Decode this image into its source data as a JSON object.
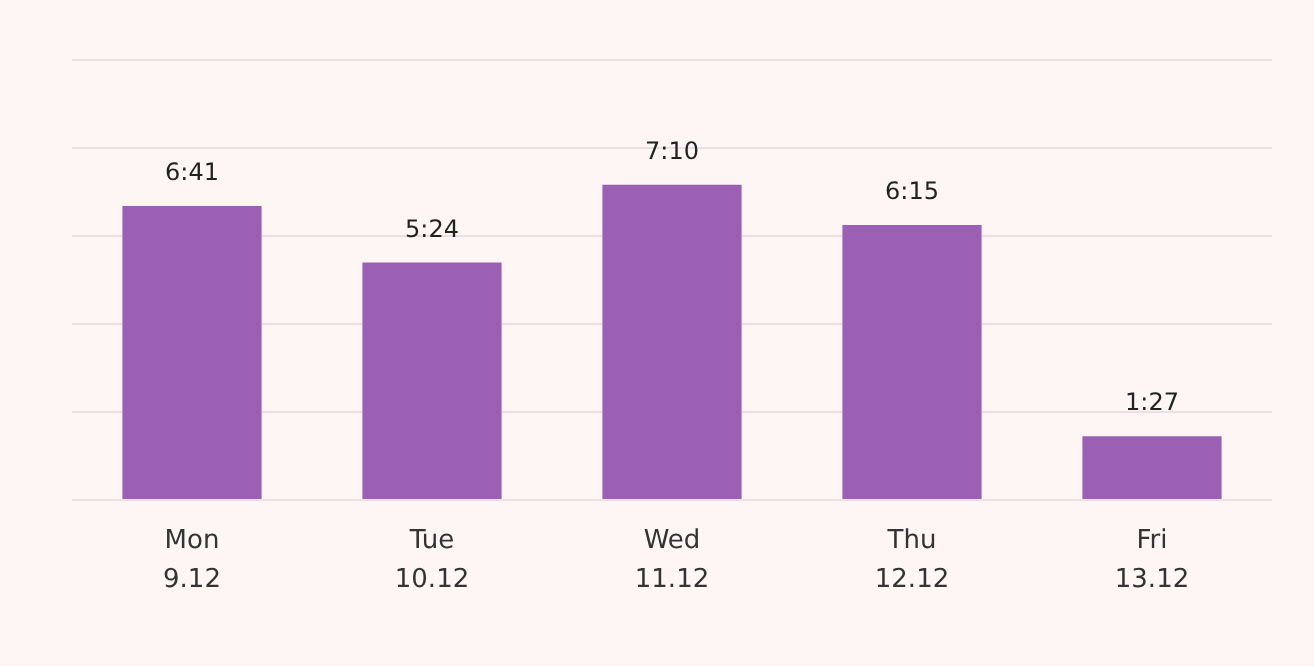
{
  "chart_data": {
    "type": "bar",
    "categories": [
      "Mon\n9.12",
      "Tue\n10.12",
      "Wed\n11.12",
      "Thu\n12.12",
      "Fri\n13.12"
    ],
    "values": [
      6.683,
      5.4,
      7.167,
      6.25,
      1.45
    ],
    "value_labels": [
      "6:41",
      "5:24",
      "7:10",
      "6:15",
      "1:27"
    ],
    "color": "#9b5fb4",
    "ylim": [
      0,
      10
    ],
    "yticks": [
      {
        "value": 0,
        "label": null
      },
      {
        "value": 2,
        "label": null
      },
      {
        "value": 4,
        "label": null
      },
      {
        "value": 6,
        "label": null
      },
      {
        "value": 8,
        "label": null
      },
      {
        "value": 10,
        "label": null
      }
    ],
    "tick_labels": "x",
    "grid": "y",
    "legend": false
  }
}
